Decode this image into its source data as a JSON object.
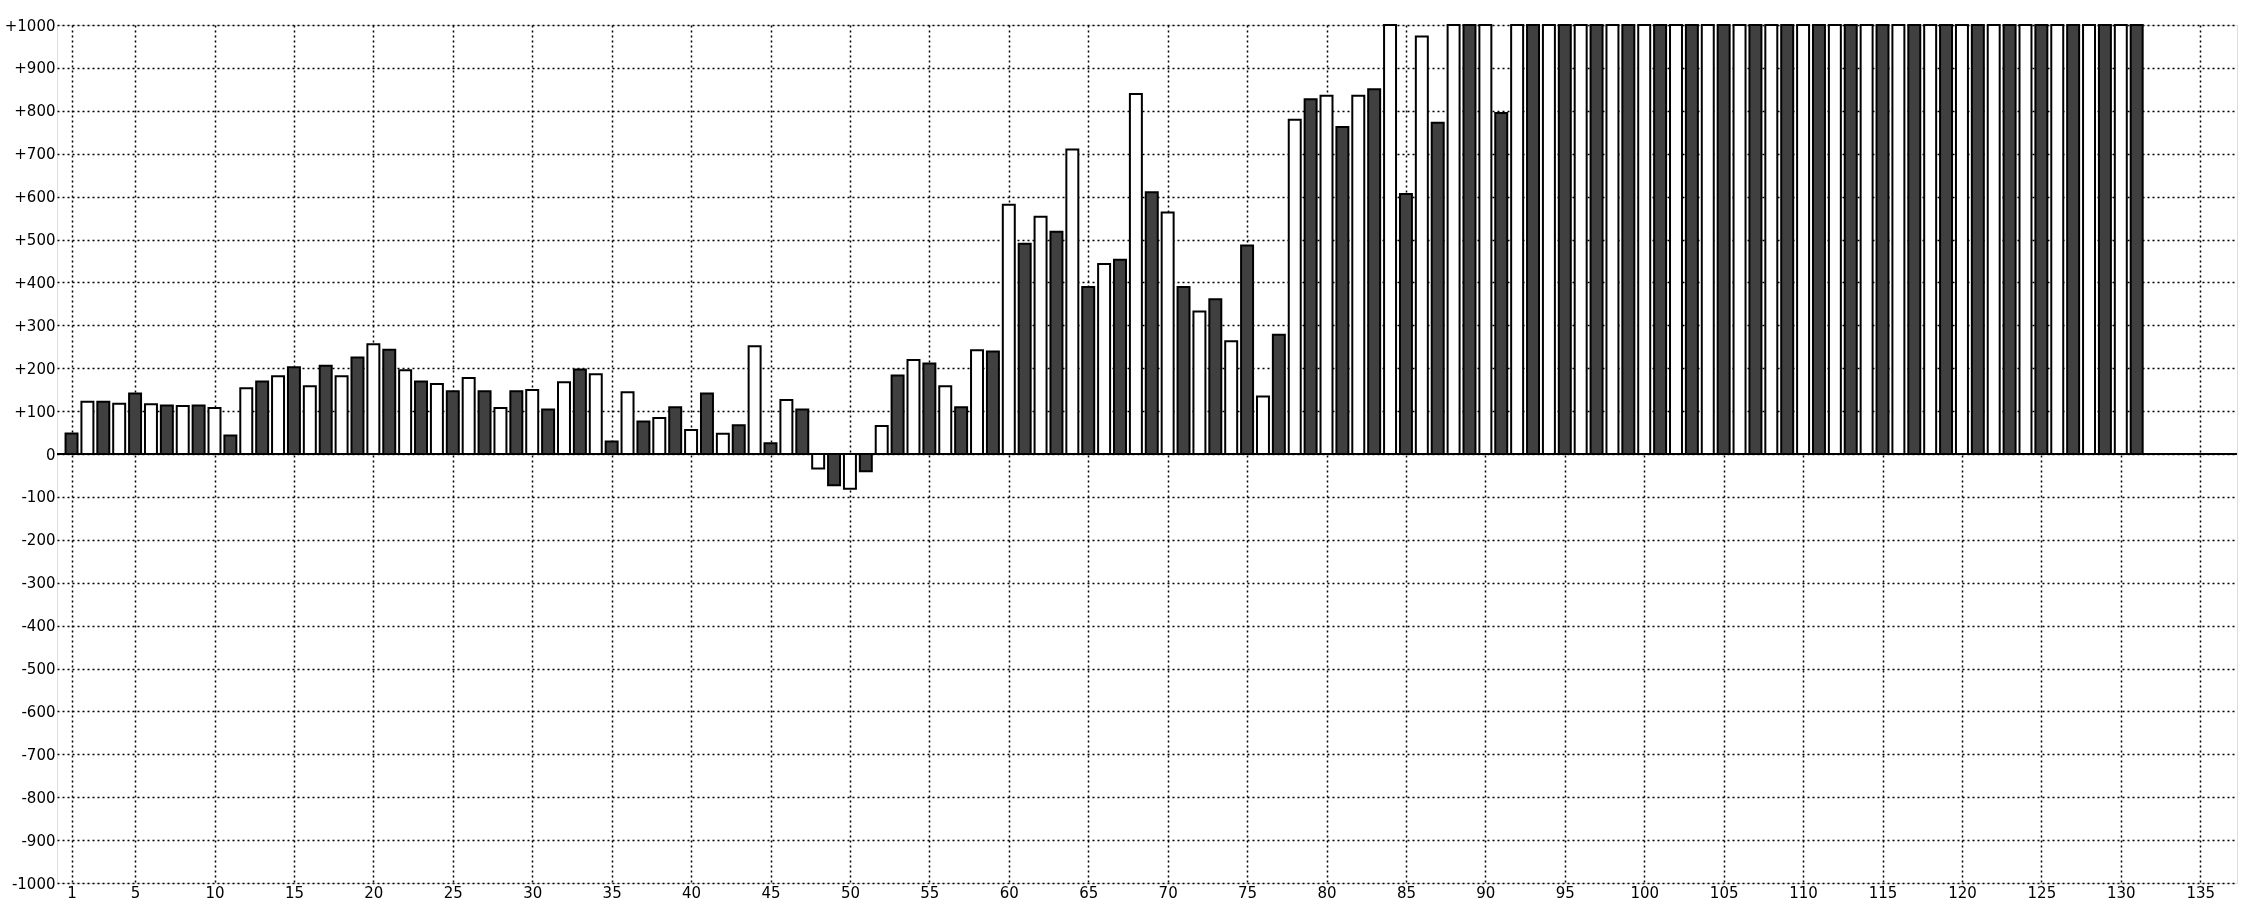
{
  "chart_data": {
    "type": "bar",
    "x": [
      1,
      2,
      3,
      4,
      5,
      6,
      7,
      8,
      9,
      10,
      11,
      12,
      13,
      14,
      15,
      16,
      17,
      18,
      19,
      20,
      21,
      22,
      23,
      24,
      25,
      26,
      27,
      28,
      29,
      30,
      31,
      32,
      33,
      34,
      35,
      36,
      37,
      38,
      39,
      40,
      41,
      42,
      43,
      44,
      45,
      46,
      47,
      48,
      49,
      50,
      51,
      52,
      53,
      54,
      55,
      56,
      57,
      58,
      59,
      60,
      61,
      62,
      63,
      64,
      65,
      66,
      67,
      68,
      69,
      70,
      71,
      72,
      73,
      74,
      75,
      76,
      77,
      78,
      79,
      80,
      81,
      82,
      83,
      84,
      85,
      86,
      87,
      88,
      89,
      90,
      91,
      92,
      93,
      94,
      95,
      96,
      97,
      98,
      99,
      100,
      101,
      102,
      103,
      104,
      105,
      106,
      107,
      108,
      109,
      110,
      111,
      112,
      113,
      114,
      115,
      116,
      117,
      118,
      119,
      120,
      121,
      122,
      123,
      124,
      125,
      126,
      127,
      128,
      129,
      130,
      131
    ],
    "values": [
      48,
      122,
      122,
      117,
      141,
      116,
      113,
      112,
      113,
      107,
      43,
      153,
      169,
      181,
      202,
      158,
      206,
      181,
      225,
      256,
      243,
      195,
      169,
      163,
      146,
      177,
      146,
      107,
      146,
      149,
      104,
      167,
      197,
      186,
      29,
      144,
      76,
      84,
      109,
      56,
      141,
      47,
      67,
      251,
      25,
      126,
      104,
      -34,
      -73,
      -81,
      -40,
      65,
      183,
      219,
      211,
      158,
      109,
      242,
      239,
      581,
      490,
      553,
      518,
      710,
      389,
      443,
      453,
      839,
      610,
      563,
      389,
      332,
      361,
      263,
      486,
      134,
      278,
      779,
      827,
      835,
      762,
      835,
      850,
      1000,
      606,
      973,
      772,
      1000,
      1000,
      1000,
      795,
      1000,
      1000,
      1000,
      1000,
      1000,
      1000,
      1000,
      1000,
      1000,
      1000,
      1000,
      1000,
      1000,
      1000,
      1000,
      1000,
      1000,
      1000,
      1000,
      1000,
      1000,
      1000,
      1000,
      1000,
      1000,
      1000,
      1000,
      1000,
      1000,
      1000,
      1000,
      1000,
      1000,
      1000,
      1000,
      1000,
      1000,
      1000,
      1000,
      1000
    ],
    "colors": [
      "#404040",
      "#ffffff",
      "#404040",
      "#ffffff",
      "#404040",
      "#ffffff",
      "#404040",
      "#ffffff",
      "#404040",
      "#ffffff",
      "#404040",
      "#ffffff",
      "#404040",
      "#ffffff",
      "#404040",
      "#ffffff",
      "#404040",
      "#ffffff",
      "#404040",
      "#ffffff",
      "#404040",
      "#ffffff",
      "#404040",
      "#ffffff",
      "#404040",
      "#ffffff",
      "#404040",
      "#ffffff",
      "#404040",
      "#ffffff",
      "#404040",
      "#ffffff",
      "#404040",
      "#ffffff",
      "#404040",
      "#ffffff",
      "#404040",
      "#ffffff",
      "#404040",
      "#ffffff",
      "#404040",
      "#ffffff",
      "#404040",
      "#ffffff",
      "#404040",
      "#ffffff",
      "#404040",
      "#ffffff",
      "#404040",
      "#ffffff",
      "#404040",
      "#ffffff",
      "#404040",
      "#ffffff",
      "#404040",
      "#ffffff",
      "#404040",
      "#ffffff",
      "#404040",
      "#ffffff",
      "#404040",
      "#ffffff",
      "#404040",
      "#ffffff",
      "#404040",
      "#ffffff",
      "#404040",
      "#ffffff",
      "#404040",
      "#ffffff",
      "#404040",
      "#ffffff",
      "#404040",
      "#ffffff",
      "#404040",
      "#ffffff",
      "#404040",
      "#ffffff",
      "#404040",
      "#ffffff",
      "#404040",
      "#ffffff",
      "#404040",
      "#ffffff",
      "#404040",
      "#ffffff",
      "#404040",
      "#ffffff",
      "#404040",
      "#ffffff",
      "#404040",
      "#ffffff",
      "#404040",
      "#ffffff",
      "#404040",
      "#ffffff",
      "#404040",
      "#ffffff",
      "#404040",
      "#ffffff",
      "#404040",
      "#ffffff",
      "#404040",
      "#ffffff",
      "#404040",
      "#ffffff",
      "#404040",
      "#ffffff",
      "#404040",
      "#ffffff",
      "#404040",
      "#ffffff",
      "#404040",
      "#ffffff",
      "#404040",
      "#ffffff",
      "#404040",
      "#ffffff",
      "#404040",
      "#ffffff",
      "#404040",
      "#ffffff",
      "#404040",
      "#ffffff",
      "#404040",
      "#ffffff",
      "#404040",
      "#ffffff",
      "#404040",
      "#ffffff",
      "#404040"
    ],
    "xlim": [
      0.4,
      137
    ],
    "xticks": [
      1,
      5,
      10,
      15,
      20,
      25,
      30,
      35,
      40,
      45,
      50,
      55,
      60,
      65,
      70,
      75,
      80,
      85,
      90,
      95,
      100,
      105,
      110,
      115,
      120,
      125,
      130,
      135
    ],
    "ylim": [
      -1000,
      1000
    ],
    "yticks": [
      {
        "value": 1000,
        "label": "+1000"
      },
      {
        "value": 900,
        "label": "+900"
      },
      {
        "value": 800,
        "label": "+800"
      },
      {
        "value": 700,
        "label": "+700"
      },
      {
        "value": 600,
        "label": "+600"
      },
      {
        "value": 500,
        "label": "+500"
      },
      {
        "value": 400,
        "label": "+400"
      },
      {
        "value": 300,
        "label": "+300"
      },
      {
        "value": 200,
        "label": "+200"
      },
      {
        "value": 100,
        "label": "+100"
      },
      0,
      -100,
      -200,
      -300,
      -400,
      -500,
      -600,
      -700,
      -800,
      -900,
      -1000
    ],
    "ref_lines": [
      {
        "axis": "y",
        "value": 0,
        "color": "#000000"
      }
    ],
    "grid": true
  }
}
